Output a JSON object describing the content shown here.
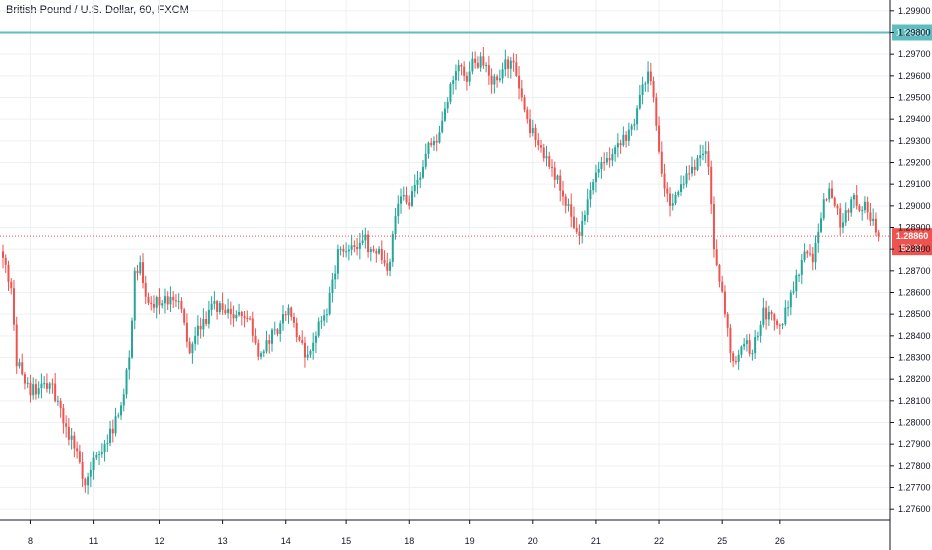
{
  "title": "British Pound / U.S. Dollar, 60, FXCM",
  "colors": {
    "up": "#26a69a",
    "down": "#ef5350",
    "grid": "#eef0f3",
    "axis": "#131722",
    "hline": "#5fbcc0",
    "price_tag": "#ef5350",
    "hline_tag": "#5fbcc0"
  },
  "chart_data": {
    "type": "candlestick",
    "symbol": "British Pound / U.S. Dollar, 60, FXCM",
    "ylim": [
      1.2755,
      1.2995
    ],
    "y_ticks": [
      "1.27600",
      "1.27700",
      "1.27800",
      "1.27900",
      "1.28000",
      "1.28100",
      "1.28200",
      "1.28300",
      "1.28400",
      "1.28500",
      "1.28600",
      "1.28700",
      "1.28800",
      "1.28900",
      "1.29000",
      "1.29100",
      "1.29200",
      "1.29300",
      "1.29400",
      "1.29500",
      "1.29600",
      "1.29700",
      "1.29800",
      "1.29900"
    ],
    "x_ticks": [
      {
        "label": "8",
        "index": 10
      },
      {
        "label": "11",
        "index": 33
      },
      {
        "label": "12",
        "index": 57
      },
      {
        "label": "13",
        "index": 80
      },
      {
        "label": "14",
        "index": 103
      },
      {
        "label": "15",
        "index": 125
      },
      {
        "label": "18",
        "index": 148
      },
      {
        "label": "19",
        "index": 170
      },
      {
        "label": "20",
        "index": 193
      },
      {
        "label": "21",
        "index": 216
      },
      {
        "label": "22",
        "index": 239
      },
      {
        "label": "25",
        "index": 262
      },
      {
        "label": "26",
        "index": 283
      }
    ],
    "horizontal_line": {
      "value": 1.298,
      "label": "1.29800"
    },
    "last_price": {
      "value": 1.2886,
      "label": "1.28860",
      "countdown": "50:31"
    },
    "anchors": [
      [
        0,
        1.2876
      ],
      [
        3,
        1.2862
      ],
      [
        5,
        1.2826
      ],
      [
        8,
        1.2818
      ],
      [
        12,
        1.2813
      ],
      [
        17,
        1.2818
      ],
      [
        20,
        1.281
      ],
      [
        23,
        1.2798
      ],
      [
        26,
        1.2788
      ],
      [
        29,
        1.2774
      ],
      [
        31,
        1.2775
      ],
      [
        34,
        1.2785
      ],
      [
        37,
        1.279
      ],
      [
        40,
        1.2795
      ],
      [
        44,
        1.2813
      ],
      [
        46,
        1.283
      ],
      [
        48,
        1.287
      ],
      [
        50,
        1.2874
      ],
      [
        52,
        1.2858
      ],
      [
        55,
        1.2853
      ],
      [
        58,
        1.2855
      ],
      [
        61,
        1.2858
      ],
      [
        63,
        1.2856
      ],
      [
        66,
        1.2846
      ],
      [
        68,
        1.2832
      ],
      [
        70,
        1.284
      ],
      [
        72,
        1.2843
      ],
      [
        75,
        1.2852
      ],
      [
        77,
        1.2856
      ],
      [
        80,
        1.2852
      ],
      [
        83,
        1.285
      ],
      [
        86,
        1.2851
      ],
      [
        89,
        1.2848
      ],
      [
        91,
        1.284
      ],
      [
        94,
        1.2832
      ],
      [
        96,
        1.2838
      ],
      [
        99,
        1.2843
      ],
      [
        102,
        1.285
      ],
      [
        104,
        1.2853
      ],
      [
        106,
        1.2846
      ],
      [
        108,
        1.2838
      ],
      [
        110,
        1.283
      ],
      [
        112,
        1.2833
      ],
      [
        114,
        1.284
      ],
      [
        116,
        1.2847
      ],
      [
        118,
        1.285
      ],
      [
        120,
        1.2866
      ],
      [
        122,
        1.288
      ],
      [
        125,
        1.2879
      ],
      [
        128,
        1.2881
      ],
      [
        131,
        1.2884
      ],
      [
        134,
        1.288
      ],
      [
        136,
        1.2878
      ],
      [
        138,
        1.2875
      ],
      [
        140,
        1.287
      ],
      [
        142,
        1.2887
      ],
      [
        144,
        1.2901
      ],
      [
        146,
        1.2905
      ],
      [
        148,
        1.29
      ],
      [
        151,
        1.2912
      ],
      [
        153,
        1.2918
      ],
      [
        156,
        1.2928
      ],
      [
        159,
        1.2934
      ],
      [
        162,
        1.2948
      ],
      [
        164,
        1.2958
      ],
      [
        166,
        1.2965
      ],
      [
        168,
        1.296
      ],
      [
        170,
        1.2962
      ],
      [
        172,
        1.2966
      ],
      [
        174,
        1.2969
      ],
      [
        176,
        1.2965
      ],
      [
        178,
        1.2956
      ],
      [
        180,
        1.2958
      ],
      [
        182,
        1.2963
      ],
      [
        185,
        1.2967
      ],
      [
        187,
        1.296
      ],
      [
        189,
        1.295
      ],
      [
        191,
        1.294
      ],
      [
        193,
        1.2936
      ],
      [
        195,
        1.2928
      ],
      [
        197,
        1.2922
      ],
      [
        199,
        1.2918
      ],
      [
        201,
        1.2912
      ],
      [
        203,
        1.2907
      ],
      [
        205,
        1.29
      ],
      [
        207,
        1.2895
      ],
      [
        209,
        1.2888
      ],
      [
        211,
        1.2893
      ],
      [
        213,
        1.2903
      ],
      [
        215,
        1.2911
      ],
      [
        217,
        1.2917
      ],
      [
        219,
        1.292
      ],
      [
        221,
        1.2921
      ],
      [
        223,
        1.2927
      ],
      [
        225,
        1.2928
      ],
      [
        227,
        1.293
      ],
      [
        229,
        1.2937
      ],
      [
        231,
        1.2945
      ],
      [
        233,
        1.2956
      ],
      [
        235,
        1.2962
      ],
      [
        237,
        1.295
      ],
      [
        239,
        1.2925
      ],
      [
        241,
        1.2908
      ],
      [
        243,
        1.29
      ],
      [
        245,
        1.2905
      ],
      [
        247,
        1.291
      ],
      [
        249,
        1.2915
      ],
      [
        251,
        1.2918
      ],
      [
        253,
        1.2922
      ],
      [
        255,
        1.2924
      ],
      [
        257,
        1.2918
      ],
      [
        259,
        1.288
      ],
      [
        261,
        1.2865
      ],
      [
        263,
        1.285
      ],
      [
        265,
        1.2832
      ],
      [
        267,
        1.2828
      ],
      [
        269,
        1.2835
      ],
      [
        271,
        1.2838
      ],
      [
        273,
        1.2832
      ],
      [
        275,
        1.284
      ],
      [
        277,
        1.2853
      ],
      [
        279,
        1.2851
      ],
      [
        281,
        1.2847
      ],
      [
        283,
        1.2845
      ],
      [
        285,
        1.2853
      ],
      [
        287,
        1.286
      ],
      [
        289,
        1.2868
      ],
      [
        291,
        1.2875
      ],
      [
        293,
        1.2878
      ],
      [
        295,
        1.2874
      ],
      [
        297,
        1.2888
      ],
      [
        299,
        1.2903
      ],
      [
        301,
        1.2908
      ],
      [
        303,
        1.29
      ],
      [
        305,
        1.289
      ],
      [
        307,
        1.2898
      ],
      [
        309,
        1.2903
      ],
      [
        311,
        1.29
      ],
      [
        313,
        1.2898
      ],
      [
        315,
        1.2897
      ],
      [
        317,
        1.2894
      ],
      [
        319,
        1.2886
      ]
    ]
  }
}
